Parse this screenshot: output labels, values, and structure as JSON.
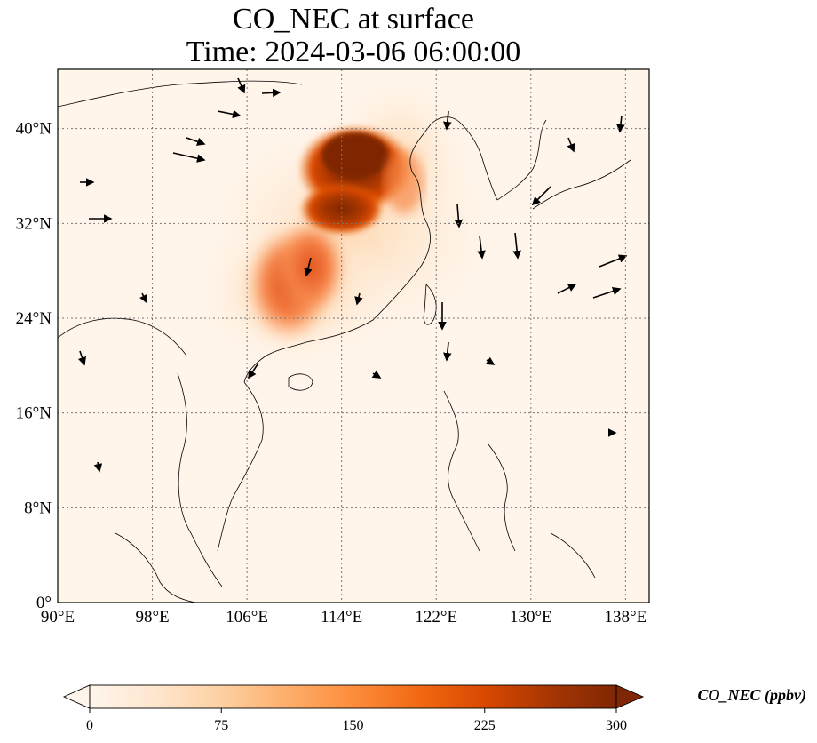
{
  "title_line1": "CO_NEC at surface",
  "title_line2": "Time: 2024-03-06 06:00:00",
  "map": {
    "lon_range": [
      90,
      140
    ],
    "lat_range": [
      0,
      45
    ],
    "lon_ticks": [
      {
        "value": 90,
        "label": "90°E"
      },
      {
        "value": 98,
        "label": "98°E"
      },
      {
        "value": 106,
        "label": "106°E"
      },
      {
        "value": 114,
        "label": "114°E"
      },
      {
        "value": 122,
        "label": "122°E"
      },
      {
        "value": 130,
        "label": "130°E"
      },
      {
        "value": 138,
        "label": "138°E"
      }
    ],
    "lat_ticks": [
      {
        "value": 0,
        "label": "0°"
      },
      {
        "value": 8,
        "label": "8°N"
      },
      {
        "value": 16,
        "label": "16°N"
      },
      {
        "value": 24,
        "label": "24°N"
      },
      {
        "value": 32,
        "label": "32°N"
      },
      {
        "value": 40,
        "label": "40°N"
      }
    ],
    "gridlines": true
  },
  "colorbar": {
    "label": "CO_NEC (ppbv)",
    "ticks": [
      "0",
      "75",
      "150",
      "225",
      "300"
    ],
    "range": [
      0,
      300
    ],
    "extend": "both",
    "colormap": [
      "#fff5eb",
      "#fee6ce",
      "#fdd0a2",
      "#fdae6b",
      "#fd8d3c",
      "#f16913",
      "#d94801",
      "#a63603",
      "#7f2704"
    ]
  }
}
